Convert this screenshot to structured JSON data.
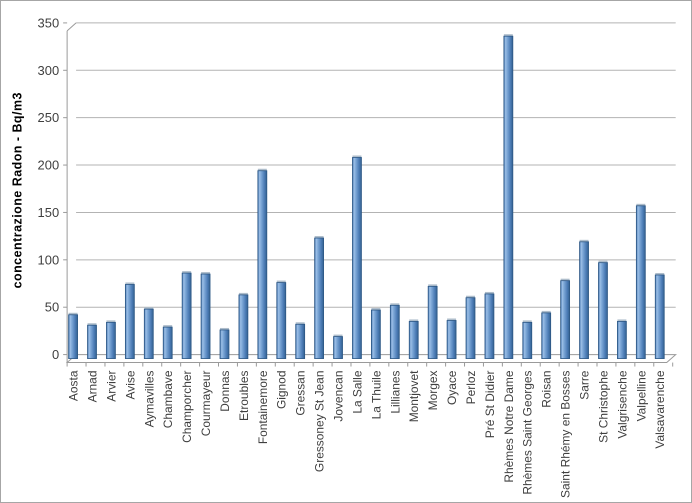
{
  "chart_data": {
    "type": "bar",
    "title": "",
    "xlabel": "",
    "ylabel": "concentrazione Radon - Bq/m3",
    "ylim": [
      0,
      350
    ],
    "ytick_step": 50,
    "yticks": [
      0,
      50,
      100,
      150,
      200,
      250,
      300,
      350
    ],
    "grid": true,
    "legend": "none",
    "categories": [
      "Aosta",
      "Arnad",
      "Arvier",
      "Avise",
      "Aymavilles",
      "Chambave",
      "Champorcher",
      "Courmayeur",
      "Donnas",
      "Etroubles",
      "Fontainemore",
      "Gignod",
      "Gressan",
      "Gressoney St Jean",
      "Jovencan",
      "La Salle",
      "La Thuile",
      "Lillianes",
      "Montjovet",
      "Morgex",
      "Oyace",
      "Perloz",
      "Pré St Didier",
      "Rhèmes Notre Dame",
      "Rhèmes Saint Georges",
      "Roisan",
      "Saint Rhémy en Bosses",
      "Sarre",
      "St Christophe",
      "Valgrisenche",
      "Valpelline",
      "Valsavarenche"
    ],
    "values": [
      42,
      31,
      34,
      74,
      48,
      29,
      86,
      85,
      26,
      63,
      194,
      76,
      32,
      123,
      19,
      208,
      47,
      52,
      35,
      72,
      36,
      60,
      64,
      336,
      34,
      44,
      78,
      119,
      97,
      35,
      157,
      84
    ],
    "colors": {
      "bar_fill": "#4f81bd",
      "bar_fill_light": "#9cbfe6",
      "bar_fill_dark": "#35628f",
      "bar_edge": "#2c5785",
      "bar_cap": "#aebdcb",
      "gridline": "#b3b3b3",
      "axis": "#9a9a9a",
      "tick_label": "#3f3f3f"
    }
  }
}
